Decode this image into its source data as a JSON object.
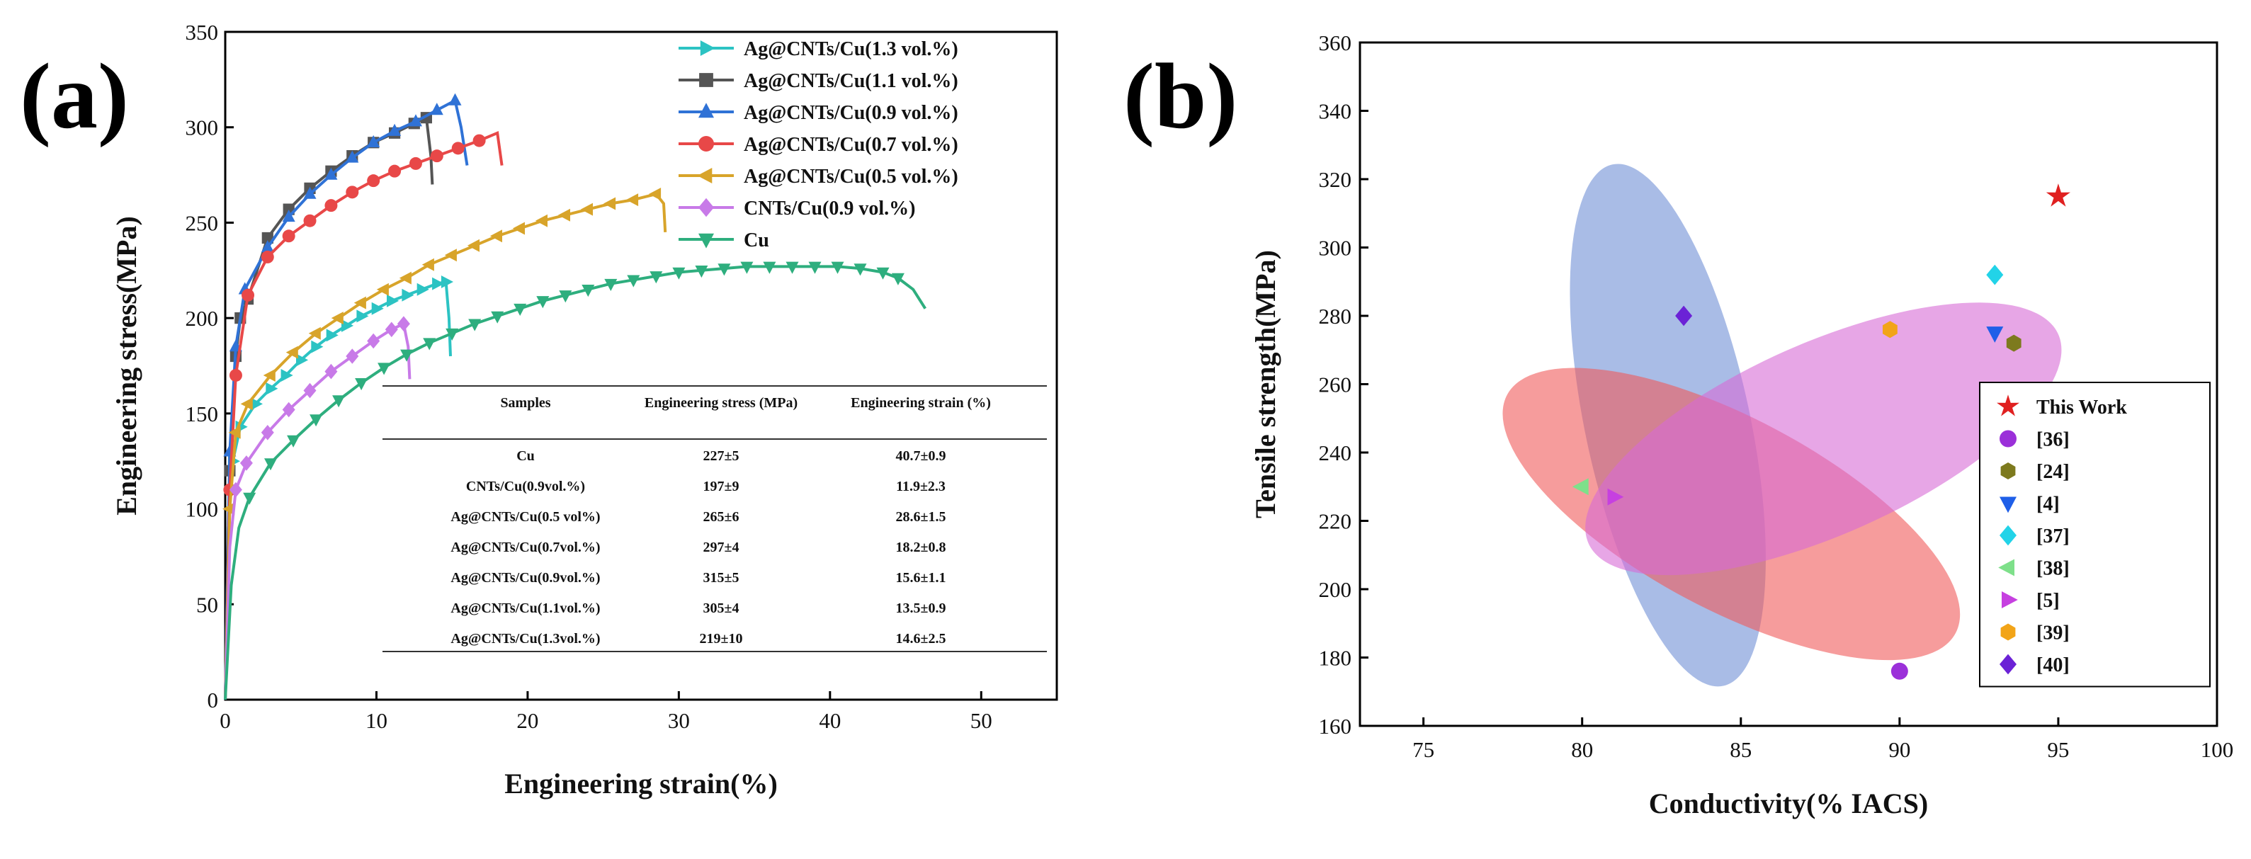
{
  "figure": {
    "panel_a_label": "(a)",
    "panel_b_label": "(b)"
  },
  "colors": {
    "cu": "#2eae7e",
    "cnts_09": "#c87ae8",
    "ag_05": "#d8a42a",
    "ag_07": "#e84848",
    "ag_09": "#2f72d6",
    "ag_11": "#555555",
    "ag_13": "#2cc3c3",
    "ellipse_blue": "#6f8fd6",
    "ellipse_red": "#f05a5a",
    "ellipse_pink": "#d76ad6"
  },
  "chart_data": [
    {
      "type": "line",
      "panel": "a",
      "title": "",
      "xlabel": "Engineering strain(%)",
      "ylabel": "Engineering stress(MPa)",
      "xlim": [
        0,
        55
      ],
      "ylim": [
        0,
        350
      ],
      "xticks": [
        0,
        10,
        20,
        30,
        40,
        50
      ],
      "yticks": [
        0,
        50,
        100,
        150,
        200,
        250,
        300,
        350
      ],
      "series": [
        {
          "name": "Ag@CNTs/Cu(1.3 vol.%)",
          "marker": "triangle-right",
          "color_key": "ag_13",
          "x": [
            0,
            0.2,
            0.5,
            1,
            2,
            3,
            4,
            5,
            6,
            7,
            8,
            9,
            10,
            11,
            12,
            13,
            14,
            14.6,
            14.8,
            14.9
          ],
          "y": [
            0,
            90,
            125,
            143,
            155,
            163,
            170,
            178,
            185,
            191,
            196,
            201,
            205,
            209,
            212,
            215,
            218,
            219,
            200,
            180
          ]
        },
        {
          "name": "Ag@CNTs/Cu(1.1 vol.%)",
          "marker": "square",
          "color_key": "ag_11",
          "x": [
            0,
            0.3,
            0.7,
            1,
            1.5,
            2.8,
            4.2,
            5.6,
            7,
            8.4,
            9.8,
            11.2,
            12.5,
            13.3,
            13.6,
            13.7
          ],
          "y": [
            0,
            120,
            180,
            200,
            210,
            242,
            257,
            268,
            277,
            285,
            292,
            297,
            302,
            305,
            285,
            270
          ]
        },
        {
          "name": "Ag@CNTs/Cu(0.9 vol.%)",
          "marker": "triangle-up",
          "color_key": "ag_09",
          "x": [
            0,
            0.3,
            0.7,
            1.3,
            2.8,
            4.2,
            5.6,
            7,
            8.4,
            9.8,
            11.2,
            12.6,
            14,
            15.2,
            15.6,
            16
          ],
          "y": [
            0,
            130,
            185,
            215,
            237,
            253,
            265,
            275,
            284,
            292,
            298,
            303,
            309,
            314,
            300,
            280
          ]
        },
        {
          "name": "Ag@CNTs/Cu(0.7 vol.%)",
          "marker": "circle",
          "color_key": "ag_07",
          "x": [
            0,
            0.3,
            0.7,
            1.5,
            2.8,
            4.2,
            5.6,
            7,
            8.4,
            9.8,
            11.2,
            12.6,
            14,
            15.4,
            16.8,
            18,
            18.3
          ],
          "y": [
            0,
            110,
            170,
            212,
            232,
            243,
            251,
            259,
            266,
            272,
            277,
            281,
            285,
            289,
            293,
            297,
            280
          ]
        },
        {
          "name": "Ag@CNTs/Cu(0.5 vol.%)",
          "marker": "triangle-left",
          "color_key": "ag_05",
          "x": [
            0,
            0.3,
            0.7,
            1.5,
            3,
            4.5,
            6,
            7.5,
            9,
            10.5,
            12,
            13.5,
            15,
            16.5,
            18,
            19.5,
            21,
            22.5,
            24,
            25.5,
            27,
            28.5,
            29,
            29.1
          ],
          "y": [
            0,
            100,
            140,
            155,
            170,
            182,
            192,
            200,
            208,
            215,
            221,
            228,
            233,
            238,
            243,
            247,
            251,
            254,
            257,
            260,
            262,
            265,
            260,
            245
          ]
        },
        {
          "name": "CNTs/Cu(0.9 vol.%)",
          "marker": "diamond",
          "color_key": "cnts_09",
          "x": [
            0,
            0.3,
            0.7,
            1.4,
            2.8,
            4.2,
            5.6,
            7,
            8.4,
            9.8,
            11,
            11.8,
            12.1,
            12.2
          ],
          "y": [
            0,
            80,
            110,
            124,
            140,
            152,
            162,
            172,
            180,
            188,
            194,
            197,
            185,
            168
          ]
        },
        {
          "name": "Cu",
          "marker": "triangle-down",
          "color_key": "cu",
          "x": [
            0,
            0.4,
            0.9,
            1.6,
            3,
            4.5,
            6,
            7.5,
            9,
            10.5,
            12,
            13.5,
            15,
            16.5,
            18,
            19.5,
            21,
            22.5,
            24,
            25.5,
            27,
            28.5,
            30,
            31.5,
            33,
            34.5,
            36,
            37.5,
            39,
            40.5,
            42,
            43.5,
            44.5,
            45.5,
            46.3
          ],
          "y": [
            0,
            60,
            90,
            106,
            124,
            136,
            147,
            157,
            166,
            174,
            181,
            187,
            192,
            197,
            201,
            205,
            209,
            212,
            215,
            218,
            220,
            222,
            224,
            225,
            226,
            227,
            227,
            227,
            227,
            227,
            226,
            224,
            221,
            215,
            205
          ]
        }
      ]
    },
    {
      "type": "scatter",
      "panel": "b",
      "title": "",
      "xlabel": "Conductivity(% IACS)",
      "ylabel": "Tensile strength(MPa)",
      "xlim": [
        73,
        100
      ],
      "ylim": [
        160,
        360
      ],
      "xticks": [
        75,
        80,
        85,
        90,
        95,
        100
      ],
      "yticks": [
        160,
        180,
        200,
        220,
        240,
        260,
        280,
        300,
        320,
        340,
        360
      ],
      "ellipses": [
        {
          "color_key": "ellipse_blue",
          "center": [
            82.7,
            248
          ],
          "semi_major_x_units": 2.6,
          "semi_minor_y_units": 78,
          "rotation_deg": -12
        },
        {
          "color_key": "ellipse_red",
          "center": [
            84.7,
            222
          ],
          "semi_major_x_units": 8,
          "semi_minor_y_units": 28,
          "rotation_deg": 28
        },
        {
          "color_key": "ellipse_pink",
          "center": [
            87.6,
            244
          ],
          "semi_major_x_units": 8.1,
          "semi_minor_y_units": 28,
          "rotation_deg": -24
        }
      ],
      "series": [
        {
          "name": "This Work",
          "marker": "star",
          "color": "#e02020",
          "x": [
            95
          ],
          "y": [
            315
          ]
        },
        {
          "name": "[36]",
          "marker": "circle",
          "color": "#9b30d9",
          "x": [
            90
          ],
          "y": [
            176
          ]
        },
        {
          "name": "[24]",
          "marker": "hexagon",
          "color": "#7d7a1e",
          "x": [
            93.6
          ],
          "y": [
            272
          ]
        },
        {
          "name": "[4]",
          "marker": "triangle-down",
          "color": "#1f5fe8",
          "x": [
            93
          ],
          "y": [
            275
          ]
        },
        {
          "name": "[37]",
          "marker": "diamond",
          "color": "#22d3e8",
          "x": [
            93
          ],
          "y": [
            292
          ]
        },
        {
          "name": "[38]",
          "marker": "triangle-left",
          "color": "#7ee08a",
          "x": [
            80
          ],
          "y": [
            230
          ]
        },
        {
          "name": "[5]",
          "marker": "triangle-right",
          "color": "#c640e0",
          "x": [
            81
          ],
          "y": [
            227
          ]
        },
        {
          "name": "[39]",
          "marker": "hexagon",
          "color": "#f2a418",
          "x": [
            89.7
          ],
          "y": [
            276
          ]
        },
        {
          "name": "[40]",
          "marker": "diamond",
          "color": "#6b22d6",
          "x": [
            83.2
          ],
          "y": [
            280
          ]
        }
      ]
    }
  ],
  "table": {
    "headers": [
      "Samples",
      "Engineering stress (MPa)",
      "Engineering strain (%)"
    ],
    "rows": [
      [
        "Cu",
        "227±5",
        "40.7±0.9"
      ],
      [
        "CNTs/Cu(0.9vol.%)",
        "197±9",
        "11.9±2.3"
      ],
      [
        "Ag@CNTs/Cu(0.5 vol%)",
        "265±6",
        "28.6±1.5"
      ],
      [
        "Ag@CNTs/Cu(0.7vol.%)",
        "297±4",
        "18.2±0.8"
      ],
      [
        "Ag@CNTs/Cu(0.9vol.%)",
        "315±5",
        "15.6±1.1"
      ],
      [
        "Ag@CNTs/Cu(1.1vol.%)",
        "305±4",
        "13.5±0.9"
      ],
      [
        "Ag@CNTs/Cu(1.3vol.%)",
        "219±10",
        "14.6±2.5"
      ]
    ]
  }
}
